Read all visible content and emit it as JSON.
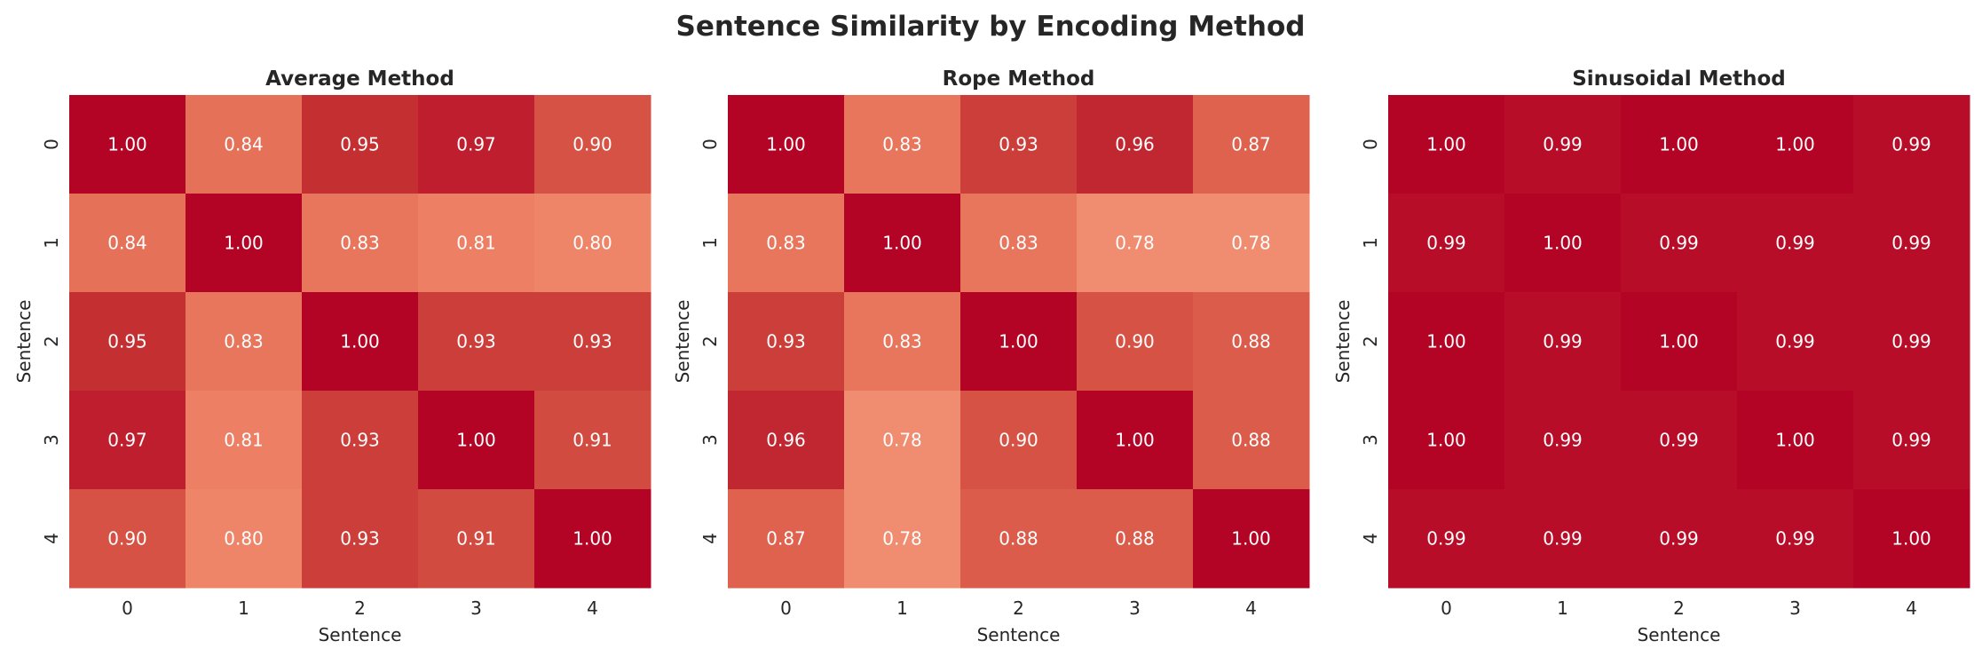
{
  "figure": {
    "title": "Sentence Similarity by Encoding Method"
  },
  "chart_data": [
    {
      "type": "heatmap",
      "title": "Average Method",
      "xlabel": "Sentence",
      "ylabel": "Sentence",
      "x_ticks": [
        "0",
        "1",
        "2",
        "3",
        "4"
      ],
      "y_ticks": [
        "0",
        "1",
        "2",
        "3",
        "4"
      ],
      "colormap": "coolwarm",
      "value_range": [
        0,
        1
      ],
      "colorbar": false,
      "values": [
        [
          1.0,
          0.84,
          0.95,
          0.97,
          0.9
        ],
        [
          0.84,
          1.0,
          0.83,
          0.81,
          0.8
        ],
        [
          0.95,
          0.83,
          1.0,
          0.93,
          0.93
        ],
        [
          0.97,
          0.81,
          0.93,
          1.0,
          0.91
        ],
        [
          0.9,
          0.8,
          0.93,
          0.91,
          1.0
        ]
      ]
    },
    {
      "type": "heatmap",
      "title": "Rope Method",
      "xlabel": "Sentence",
      "ylabel": "Sentence",
      "x_ticks": [
        "0",
        "1",
        "2",
        "3",
        "4"
      ],
      "y_ticks": [
        "0",
        "1",
        "2",
        "3",
        "4"
      ],
      "colormap": "coolwarm",
      "value_range": [
        0,
        1
      ],
      "colorbar": false,
      "values": [
        [
          1.0,
          0.83,
          0.93,
          0.96,
          0.87
        ],
        [
          0.83,
          1.0,
          0.83,
          0.78,
          0.78
        ],
        [
          0.93,
          0.83,
          1.0,
          0.9,
          0.88
        ],
        [
          0.96,
          0.78,
          0.9,
          1.0,
          0.88
        ],
        [
          0.87,
          0.78,
          0.88,
          0.88,
          1.0
        ]
      ]
    },
    {
      "type": "heatmap",
      "title": "Sinusoidal Method",
      "xlabel": "Sentence",
      "ylabel": "Sentence",
      "x_ticks": [
        "0",
        "1",
        "2",
        "3",
        "4"
      ],
      "y_ticks": [
        "0",
        "1",
        "2",
        "3",
        "4"
      ],
      "colormap": "coolwarm",
      "value_range": [
        0,
        1
      ],
      "colorbar": false,
      "values": [
        [
          1.0,
          0.99,
          1.0,
          1.0,
          0.99
        ],
        [
          0.99,
          1.0,
          0.99,
          0.99,
          0.99
        ],
        [
          1.0,
          0.99,
          1.0,
          0.99,
          0.99
        ],
        [
          1.0,
          0.99,
          0.99,
          1.0,
          0.99
        ],
        [
          0.99,
          0.99,
          0.99,
          0.99,
          1.0
        ]
      ]
    }
  ]
}
